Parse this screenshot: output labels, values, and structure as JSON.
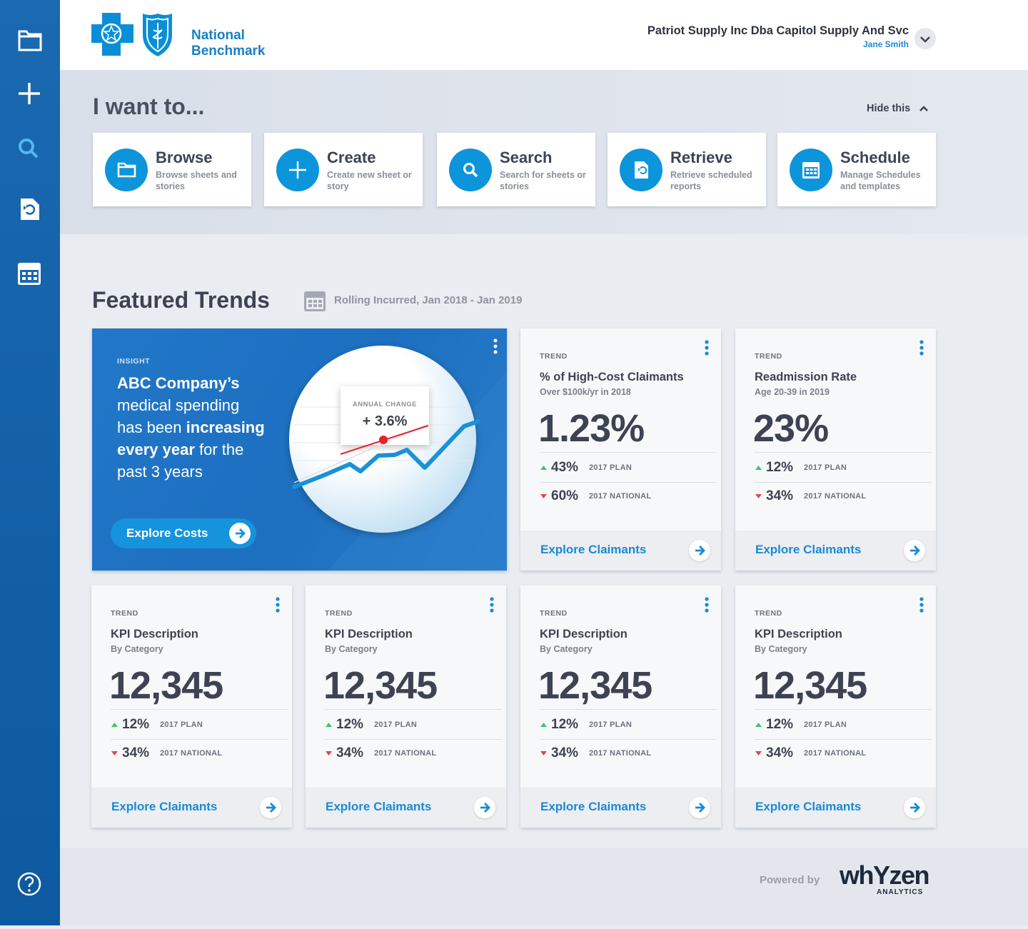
{
  "header": {
    "brand_line1": "National",
    "brand_line2": "Benchmark",
    "company": "Patriot Supply Inc Dba Capitol Supply And Svc",
    "user": "Jane Smith"
  },
  "actions": {
    "title": "I want to...",
    "hide": "Hide this",
    "items": [
      {
        "title": "Browse",
        "desc": "Browse sheets and stories"
      },
      {
        "title": "Create",
        "desc": "Create new sheet or story"
      },
      {
        "title": "Search",
        "desc": "Search for sheets or stories"
      },
      {
        "title": "Retrieve",
        "desc": "Retrieve scheduled reports"
      },
      {
        "title": "Schedule",
        "desc": "Manage Schedules and templates"
      }
    ]
  },
  "trends": {
    "title": "Featured Trends",
    "period": "Rolling Incurred, Jan 2018 - Jan 2019",
    "insight": {
      "label": "INSIGHT",
      "lines": [
        [
          {
            "text": "ABC Company’s",
            "bold": true
          }
        ],
        [
          {
            "text": "medical spending"
          }
        ],
        [
          {
            "text": "has been "
          },
          {
            "text": "increasing",
            "bold": true
          }
        ],
        [
          {
            "text": "every year",
            "bold": true
          },
          {
            "text": " for the"
          }
        ],
        [
          {
            "text": "past 3 years"
          }
        ]
      ],
      "chart_label": "ANNUAL CHANGE",
      "chart_value": "+ 3.6%",
      "button": "Explore Costs"
    },
    "cards": [
      {
        "label": "TREND",
        "title": "% of High-Cost Claimants",
        "subtitle": "Over $100k/yr in 2018",
        "value": "1.23%",
        "rows": [
          {
            "value": "43%",
            "label": "2017 PLAN",
            "dir": "up"
          },
          {
            "value": "60%",
            "label": "2017 NATIONAL",
            "dir": "down"
          }
        ],
        "link": "Explore Claimants"
      },
      {
        "label": "TREND",
        "title": "Readmission Rate",
        "subtitle": "Age 20-39 in 2019",
        "value": "23%",
        "rows": [
          {
            "value": "12%",
            "label": "2017 PLAN",
            "dir": "up"
          },
          {
            "value": "34%",
            "label": "2017 NATIONAL",
            "dir": "down"
          }
        ],
        "link": "Explore Claimants"
      },
      {
        "label": "TREND",
        "title": "KPI Description",
        "subtitle": "By Category",
        "value": "12,345",
        "rows": [
          {
            "value": "12%",
            "label": "2017 PLAN",
            "dir": "up"
          },
          {
            "value": "34%",
            "label": "2017 NATIONAL",
            "dir": "down"
          }
        ],
        "link": "Explore Claimants"
      },
      {
        "label": "TREND",
        "title": "KPI Description",
        "subtitle": "By Category",
        "value": "12,345",
        "rows": [
          {
            "value": "12%",
            "label": "2017 PLAN",
            "dir": "up"
          },
          {
            "value": "34%",
            "label": "2017 NATIONAL",
            "dir": "down"
          }
        ],
        "link": "Explore Claimants"
      },
      {
        "label": "TREND",
        "title": "KPI Description",
        "subtitle": "By Category",
        "value": "12,345",
        "rows": [
          {
            "value": "12%",
            "label": "2017 PLAN",
            "dir": "up"
          },
          {
            "value": "34%",
            "label": "2017 NATIONAL",
            "dir": "down"
          }
        ],
        "link": "Explore Claimants"
      },
      {
        "label": "TREND",
        "title": "KPI Description",
        "subtitle": "By Category",
        "value": "12,345",
        "rows": [
          {
            "value": "12%",
            "label": "2017 PLAN",
            "dir": "up"
          },
          {
            "value": "34%",
            "label": "2017 NATIONAL",
            "dir": "down"
          }
        ],
        "link": "Explore Claimants"
      }
    ]
  },
  "footer": {
    "powered": "Powered by",
    "logo": "whYzen",
    "logo_sub": "ANALYTICS"
  }
}
